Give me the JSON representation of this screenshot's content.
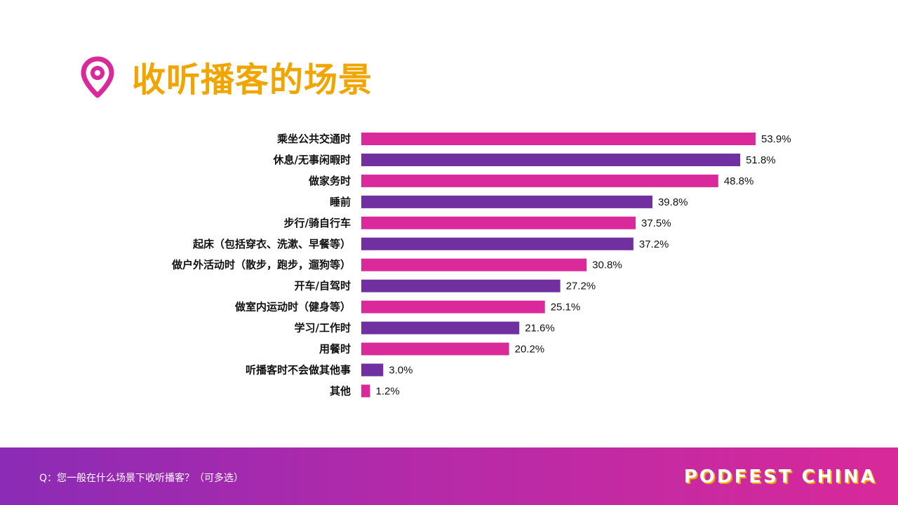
{
  "header": {
    "title": "收听播客的场景",
    "icon": "location-pin-icon"
  },
  "colors": {
    "title": "#f0a500",
    "bar_primary": "#d9299a",
    "bar_secondary": "#7030a0",
    "icon": "#d9299a"
  },
  "chart_data": {
    "type": "bar",
    "orientation": "horizontal",
    "categories": [
      "乘坐公共交通时",
      "休息/无事闲暇时",
      "做家务时",
      "睡前",
      "步行/骑自行车",
      "起床（包括穿衣、洗漱、早餐等）",
      "做户外活动时（散步，跑步，遛狗等）",
      "开车/自驾时",
      "做室内运动时（健身等）",
      "学习/工作时",
      "用餐时",
      "听播客时不会做其他事",
      "其他"
    ],
    "values": [
      53.9,
      51.8,
      48.8,
      39.8,
      37.5,
      37.2,
      30.8,
      27.2,
      25.1,
      21.6,
      20.2,
      3.0,
      1.2
    ],
    "value_labels": [
      "53.9%",
      "51.8%",
      "48.8%",
      "39.8%",
      "37.5%",
      "37.2%",
      "30.8%",
      "27.2%",
      "25.1%",
      "21.6%",
      "20.2%",
      "3.0%",
      "1.2%"
    ],
    "xlim": [
      0,
      60
    ],
    "grid": false,
    "legend": "none"
  },
  "footer": {
    "question": "Q：您一般在什么场景下收听播客？（可多选）",
    "brand": "PODFEST CHINA"
  }
}
